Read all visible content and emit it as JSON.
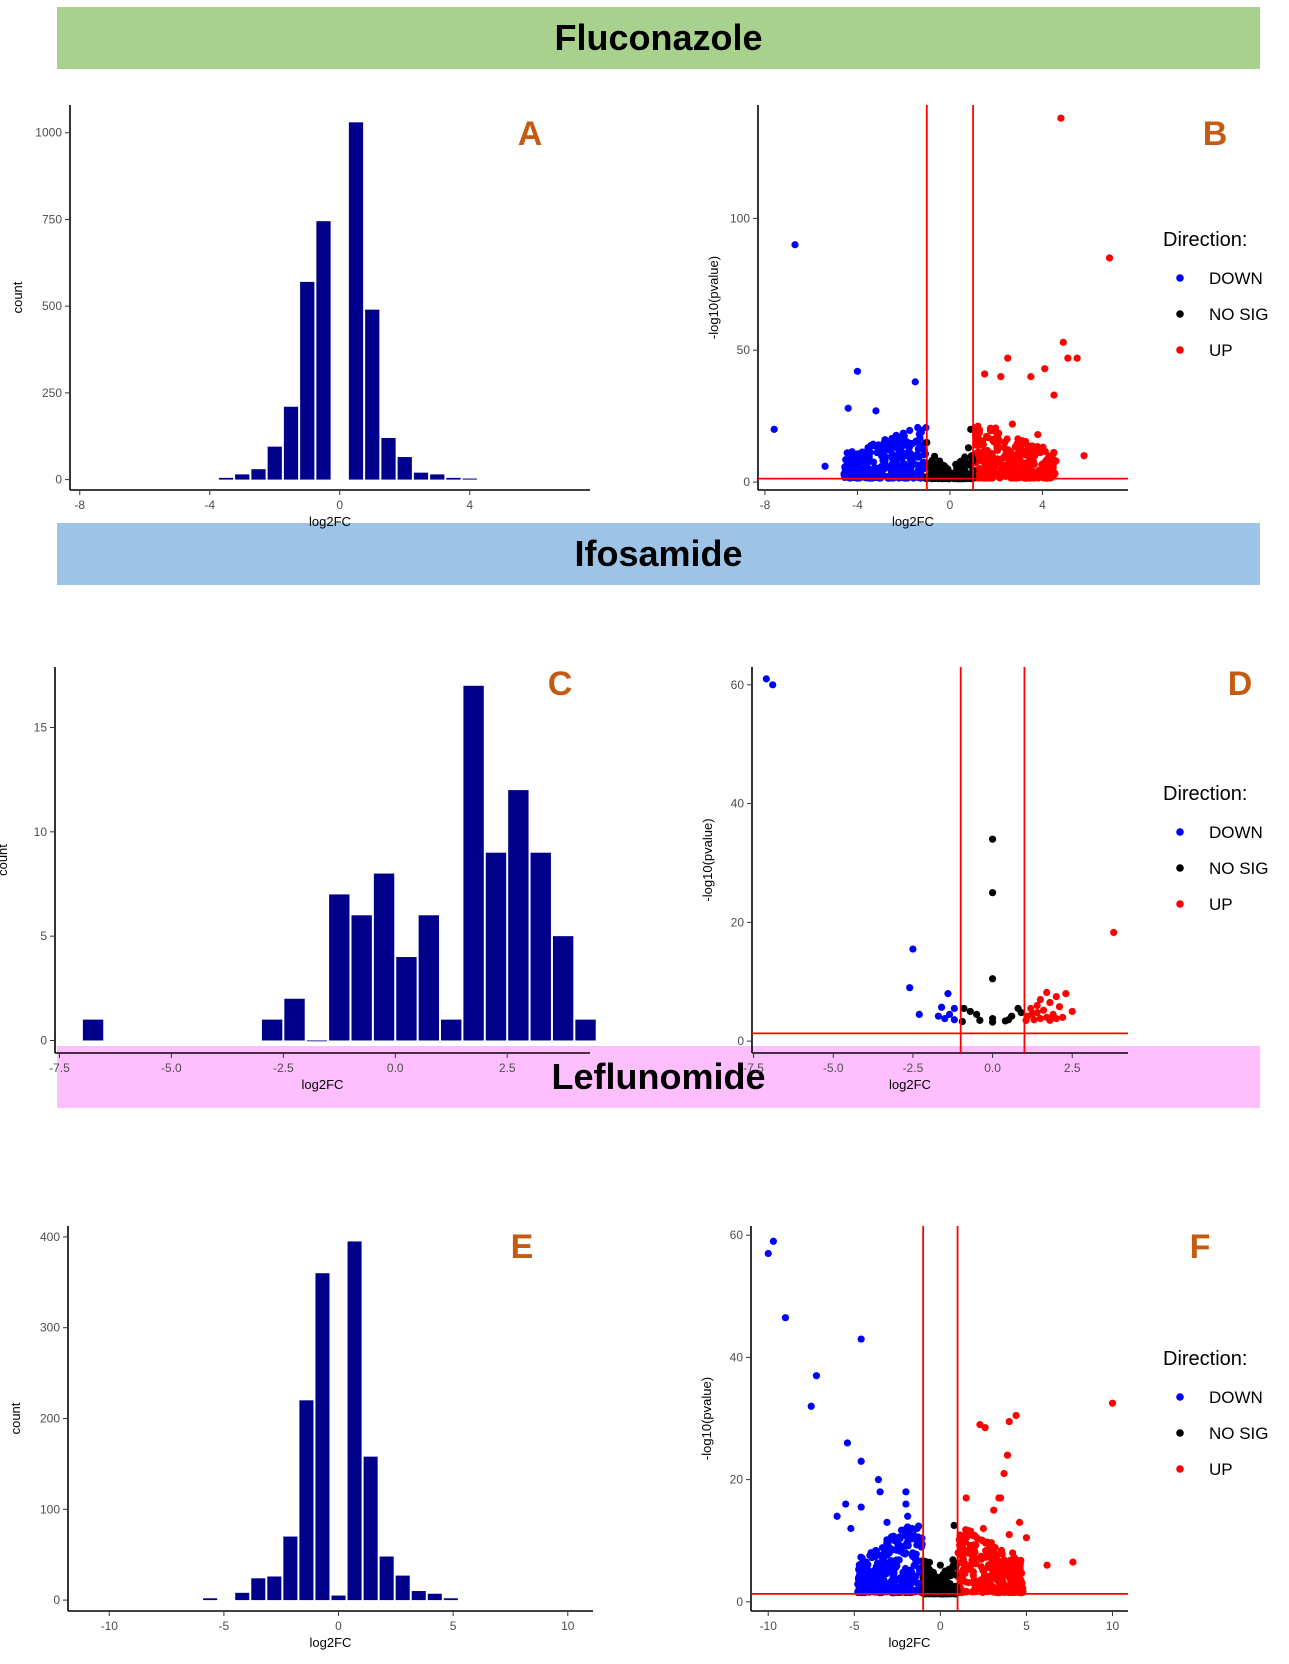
{
  "sections": [
    {
      "title": "Fluconazole",
      "color": "#a9d18e"
    },
    {
      "title": "Ifosamide",
      "color": "#9dc3e6"
    },
    {
      "title": "Leflunomide",
      "color": "#ffbfff"
    }
  ],
  "legend": {
    "title": "Direction:",
    "items": [
      {
        "label": "DOWN",
        "color": "#0000ff"
      },
      {
        "label": "NO SIG",
        "color": "#000000"
      },
      {
        "label": "UP",
        "color": "#ff0000"
      }
    ]
  },
  "colors": {
    "bar": "#00008b",
    "threshold": "#ff0000",
    "down": "#0000ff",
    "nosig": "#000000",
    "up": "#ff0000",
    "letter": "#c55a11"
  },
  "chart_data": [
    {
      "panel": "A",
      "type": "bar",
      "xlabel": "log2FC",
      "ylabel": "count",
      "xlim": [
        -8.3,
        7.7
      ],
      "ylim": [
        -30,
        1080
      ],
      "xticks": [
        -8,
        -4,
        0,
        4
      ],
      "xtick_labels": [
        "-8",
        "-4",
        "0",
        "4"
      ],
      "yticks": [
        0,
        250,
        500,
        750,
        1000
      ],
      "ytick_labels": [
        "0",
        "250",
        "500",
        "750",
        "1000"
      ],
      "bin_width": 0.5,
      "bins": [
        [
          -3.5,
          5
        ],
        [
          -3.0,
          15
        ],
        [
          -2.5,
          30
        ],
        [
          -2.0,
          95
        ],
        [
          -1.5,
          210
        ],
        [
          -1.0,
          570
        ],
        [
          -0.5,
          745
        ],
        [
          0.5,
          1030
        ],
        [
          1.0,
          490
        ],
        [
          1.5,
          120
        ],
        [
          2.0,
          65
        ],
        [
          2.5,
          20
        ],
        [
          3.0,
          15
        ],
        [
          3.5,
          5
        ],
        [
          4.0,
          3
        ]
      ]
    },
    {
      "panel": "B",
      "type": "scatter",
      "xlabel": "log2FC",
      "ylabel": "-log10(pvalue)",
      "xlim": [
        -8.3,
        7.7
      ],
      "ylim": [
        -3,
        143
      ],
      "xticks": [
        -8,
        -4,
        0,
        4
      ],
      "xtick_labels": [
        "-8",
        "-4",
        "0",
        "4"
      ],
      "yticks": [
        0,
        50,
        100
      ],
      "ytick_labels": [
        "0",
        "50",
        "100"
      ],
      "vlines": [
        -1,
        1
      ],
      "hline": 1.3,
      "up_points": [
        [
          4.8,
          138
        ],
        [
          6.9,
          85
        ],
        [
          4.9,
          53
        ],
        [
          5.1,
          47
        ],
        [
          5.5,
          47
        ],
        [
          4.1,
          43
        ],
        [
          3.5,
          40
        ],
        [
          2.5,
          47
        ],
        [
          1.5,
          41
        ],
        [
          2.2,
          40
        ],
        [
          4.5,
          33
        ],
        [
          2.7,
          22
        ],
        [
          3.8,
          18
        ],
        [
          5.8,
          10
        ],
        [
          4.2,
          8
        ]
      ],
      "down_points": [
        [
          -6.7,
          90
        ],
        [
          -4.0,
          42
        ],
        [
          -1.5,
          38
        ],
        [
          -7.6,
          20
        ],
        [
          -5.4,
          6
        ],
        [
          -4.4,
          28
        ],
        [
          -3.2,
          27
        ],
        [
          -2.5,
          14
        ]
      ],
      "nosig_points": [
        [
          0.9,
          20
        ],
        [
          0.8,
          13
        ],
        [
          -1.0,
          15
        ],
        [
          0.3,
          3
        ]
      ],
      "clouds": [
        {
          "group": "down",
          "x": [
            -4.6,
            -1.0
          ],
          "y": [
            1.5,
            22
          ],
          "count": 320
        },
        {
          "group": "up",
          "x": [
            1.0,
            4.6
          ],
          "y": [
            1.5,
            24
          ],
          "count": 340
        },
        {
          "group": "nosig",
          "x": [
            -1.0,
            1.0
          ],
          "y": [
            1.3,
            12
          ],
          "count": 160
        }
      ]
    },
    {
      "panel": "C",
      "type": "bar",
      "xlabel": "log2FC",
      "ylabel": "count",
      "xlim": [
        -7.6,
        4.35
      ],
      "ylim": [
        -0.6,
        17.9
      ],
      "xticks": [
        -7.5,
        -5.0,
        -2.5,
        0.0,
        2.5
      ],
      "xtick_labels": [
        "-7.5",
        "-5.0",
        "-2.5",
        "0.0",
        "2.5"
      ],
      "yticks": [
        0,
        5,
        10,
        15
      ],
      "ytick_labels": [
        "0",
        "5",
        "10",
        "15"
      ],
      "bin_width": 0.5,
      "bins": [
        [
          -6.75,
          1
        ],
        [
          -2.75,
          1
        ],
        [
          -2.25,
          2
        ],
        [
          -1.75,
          0
        ],
        [
          -1.25,
          7
        ],
        [
          -0.75,
          6
        ],
        [
          -0.25,
          8
        ],
        [
          0.25,
          4
        ],
        [
          0.75,
          6
        ],
        [
          1.25,
          1
        ],
        [
          1.75,
          17
        ],
        [
          2.25,
          9
        ],
        [
          2.75,
          12
        ],
        [
          3.25,
          9
        ],
        [
          3.75,
          5
        ],
        [
          4.25,
          1
        ]
      ]
    },
    {
      "panel": "D",
      "type": "scatter",
      "xlabel": "log2FC",
      "ylabel": "-log10(pvalue)",
      "xlim": [
        -7.55,
        4.25
      ],
      "ylim": [
        -2,
        63
      ],
      "xticks": [
        -7.5,
        -5.0,
        -2.5,
        0.0,
        2.5
      ],
      "xtick_labels": [
        "-7.5",
        "-5.0",
        "-2.5",
        "0.0",
        "2.5"
      ],
      "yticks": [
        0,
        20,
        40,
        60
      ],
      "ytick_labels": [
        "0",
        "20",
        "40",
        "60"
      ],
      "vlines": [
        -1,
        1
      ],
      "hline": 1.3,
      "down_points": [
        [
          -7.1,
          61
        ],
        [
          -6.9,
          60
        ],
        [
          -2.5,
          15.5
        ],
        [
          -2.6,
          9
        ],
        [
          -2.3,
          4.5
        ],
        [
          -1.4,
          8
        ],
        [
          -1.6,
          5.7
        ],
        [
          -1.2,
          5.5
        ],
        [
          -1.35,
          4.5
        ],
        [
          -1.5,
          3.8
        ],
        [
          -1.2,
          3.6
        ],
        [
          -1.7,
          4.2
        ]
      ],
      "nosig_points": [
        [
          0.0,
          34
        ],
        [
          0.0,
          25
        ],
        [
          0.0,
          10.5
        ],
        [
          -0.9,
          5.5
        ],
        [
          -0.7,
          5
        ],
        [
          -0.5,
          4.5
        ],
        [
          -0.4,
          3.5
        ],
        [
          0.0,
          3.8
        ],
        [
          0.0,
          3.2
        ],
        [
          0.6,
          4.2
        ],
        [
          0.5,
          3.6
        ],
        [
          0.4,
          3.4
        ],
        [
          0.8,
          5.5
        ],
        [
          0.9,
          4.8
        ],
        [
          -0.95,
          3.3
        ]
      ],
      "up_points": [
        [
          3.8,
          18.3
        ],
        [
          1.7,
          8.2
        ],
        [
          2.0,
          7.5
        ],
        [
          2.3,
          8
        ],
        [
          1.5,
          7
        ],
        [
          1.8,
          6.5
        ],
        [
          2.1,
          5.8
        ],
        [
          2.5,
          5
        ],
        [
          1.2,
          5.5
        ],
        [
          1.4,
          4.8
        ],
        [
          1.6,
          5.2
        ],
        [
          1.9,
          4.5
        ],
        [
          2.2,
          4
        ],
        [
          1.1,
          4.2
        ],
        [
          1.3,
          3.6
        ],
        [
          1.5,
          3.8
        ],
        [
          1.8,
          3.5
        ],
        [
          2.0,
          3.8
        ],
        [
          1.05,
          3.5
        ],
        [
          1.25,
          4.6
        ],
        [
          1.7,
          4
        ],
        [
          1.4,
          6
        ]
      ]
    },
    {
      "panel": "E",
      "type": "bar",
      "xlabel": "log2FC",
      "ylabel": "count",
      "xlim": [
        -11.8,
        11.1
      ],
      "ylim": [
        -12,
        412
      ],
      "xticks": [
        -10,
        -5,
        0,
        5,
        10
      ],
      "xtick_labels": [
        "-10",
        "-5",
        "0",
        "5",
        "10"
      ],
      "yticks": [
        0,
        100,
        200,
        300,
        400
      ],
      "ytick_labels": [
        "0",
        "100",
        "200",
        "300",
        "400"
      ],
      "bin_width": 0.7,
      "bins": [
        [
          -5.6,
          2
        ],
        [
          -4.2,
          8
        ],
        [
          -3.5,
          24
        ],
        [
          -2.8,
          26
        ],
        [
          -2.1,
          70
        ],
        [
          -1.4,
          220
        ],
        [
          -0.7,
          360
        ],
        [
          0.0,
          5
        ],
        [
          0.7,
          395
        ],
        [
          1.4,
          158
        ],
        [
          2.1,
          48
        ],
        [
          2.8,
          27
        ],
        [
          3.5,
          10
        ],
        [
          4.2,
          7
        ],
        [
          4.9,
          2
        ]
      ]
    },
    {
      "panel": "F",
      "type": "scatter",
      "xlabel": "log2FC",
      "ylabel": "-log10(pvalue)",
      "xlim": [
        -11.0,
        10.9
      ],
      "ylim": [
        -1.5,
        61.5
      ],
      "xticks": [
        -10,
        -5,
        0,
        5,
        10
      ],
      "xtick_labels": [
        "-10",
        "-5",
        "0",
        "5",
        "10"
      ],
      "yticks": [
        0,
        20,
        40,
        60
      ],
      "ytick_labels": [
        "0",
        "20",
        "40",
        "60"
      ],
      "vlines": [
        -1,
        1
      ],
      "hline": 1.3,
      "down_points": [
        [
          -9.7,
          59
        ],
        [
          -10.0,
          57
        ],
        [
          -9.0,
          46.5
        ],
        [
          -4.6,
          43
        ],
        [
          -7.2,
          37
        ],
        [
          -7.5,
          32
        ],
        [
          -5.4,
          26
        ],
        [
          -5.5,
          16
        ],
        [
          -6.0,
          14
        ],
        [
          -4.6,
          23
        ],
        [
          -3.6,
          20
        ],
        [
          -3.5,
          18
        ],
        [
          -2.0,
          18
        ],
        [
          -2.0,
          16
        ],
        [
          -3.1,
          13
        ],
        [
          -1.9,
          14
        ],
        [
          -4.6,
          15.5
        ],
        [
          -5.2,
          12
        ]
      ],
      "up_points": [
        [
          10.0,
          32.5
        ],
        [
          4.4,
          30.5
        ],
        [
          4.0,
          29.5
        ],
        [
          2.3,
          29
        ],
        [
          2.6,
          28.5
        ],
        [
          3.9,
          24
        ],
        [
          3.7,
          21
        ],
        [
          3.4,
          17
        ],
        [
          3.5,
          17
        ],
        [
          3.1,
          15
        ],
        [
          1.5,
          17
        ],
        [
          4.6,
          13
        ],
        [
          4.0,
          11
        ],
        [
          5.0,
          10.5
        ],
        [
          6.2,
          6
        ],
        [
          7.7,
          6.5
        ],
        [
          4.2,
          8
        ],
        [
          2.5,
          12
        ]
      ],
      "nosig_points": [
        [
          0.8,
          12.5
        ],
        [
          0.0,
          6
        ],
        [
          -0.5,
          4
        ],
        [
          0.5,
          3
        ]
      ],
      "clouds": [
        {
          "group": "down",
          "x": [
            -4.8,
            -1.0
          ],
          "y": [
            1.5,
            14
          ],
          "count": 300
        },
        {
          "group": "up",
          "x": [
            1.0,
            4.8
          ],
          "y": [
            1.5,
            13
          ],
          "count": 280
        },
        {
          "group": "nosig",
          "x": [
            -1.0,
            1.0
          ],
          "y": [
            1.3,
            8
          ],
          "count": 140
        }
      ]
    }
  ]
}
